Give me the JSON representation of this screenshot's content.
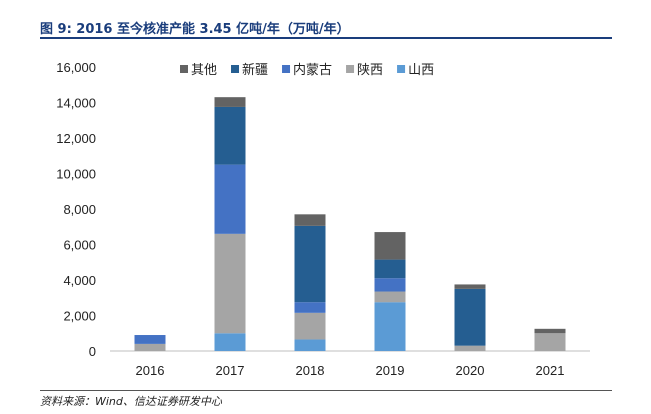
{
  "figure": {
    "title": "图 9:  2016 至今核准产能 3.45 亿吨/年（万吨/年）",
    "source": "资料来源：Wind、信达证券研发中心"
  },
  "chart_data": {
    "type": "bar",
    "stacked": true,
    "categories": [
      "2016",
      "2017",
      "2018",
      "2019",
      "2020",
      "2021"
    ],
    "series": [
      {
        "name": "山西",
        "color": "#5b9bd5",
        "values": [
          0,
          1000,
          650,
          2750,
          0,
          0
        ]
      },
      {
        "name": "陕西",
        "color": "#a5a5a5",
        "values": [
          400,
          5600,
          1500,
          600,
          300,
          1000
        ]
      },
      {
        "name": "内蒙古",
        "color": "#4472c4",
        "values": [
          500,
          3900,
          600,
          750,
          0,
          0
        ]
      },
      {
        "name": "新疆",
        "color": "#255e91",
        "values": [
          0,
          3250,
          4300,
          1050,
          3200,
          0
        ]
      },
      {
        "name": "其他",
        "color": "#636363",
        "values": [
          0,
          550,
          650,
          1550,
          250,
          250
        ]
      }
    ],
    "legend_order": [
      "其他",
      "新疆",
      "内蒙古",
      "陕西",
      "山西"
    ],
    "legend_position": "top",
    "ylim": [
      0,
      16000
    ],
    "yticks": [
      0,
      2000,
      4000,
      6000,
      8000,
      10000,
      12000,
      14000,
      16000
    ],
    "ytick_labels": [
      "0",
      "2,000",
      "4,000",
      "6,000",
      "8,000",
      "10,000",
      "12,000",
      "14,000",
      "16,000"
    ],
    "grid": false,
    "xlabel": "",
    "ylabel": ""
  }
}
